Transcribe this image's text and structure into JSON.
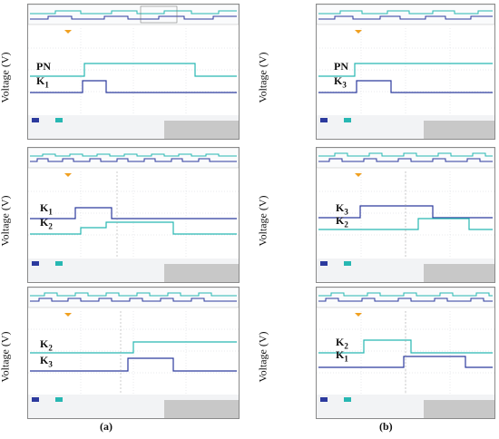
{
  "axis_label": "Voltage (V)",
  "captions": {
    "a": "(a)",
    "b": "(b)"
  },
  "panels": [
    {
      "id": "a1",
      "top_label": "PN",
      "bottom_label": "K1",
      "top_sub": "",
      "bottom_sub": "1"
    },
    {
      "id": "b1",
      "top_label": "PN",
      "bottom_label": "K3",
      "top_sub": "",
      "bottom_sub": "3"
    },
    {
      "id": "a2",
      "top_label": "K1",
      "bottom_label": "K2",
      "top_sub": "1",
      "bottom_sub": "2"
    },
    {
      "id": "b2",
      "top_label": "K3",
      "bottom_label": "K2",
      "top_sub": "3",
      "bottom_sub": "2"
    },
    {
      "id": "a3",
      "top_label": "K2",
      "bottom_label": "K3",
      "top_sub": "2",
      "bottom_sub": "3"
    },
    {
      "id": "b3",
      "top_label": "K2",
      "bottom_label": "K1",
      "top_sub": "2",
      "bottom_sub": "1"
    }
  ],
  "colors": {
    "cyan": "#27b7b2",
    "blue": "#2c3a9e",
    "gray": "#c8c8c8",
    "orange": "#f0a020"
  }
}
